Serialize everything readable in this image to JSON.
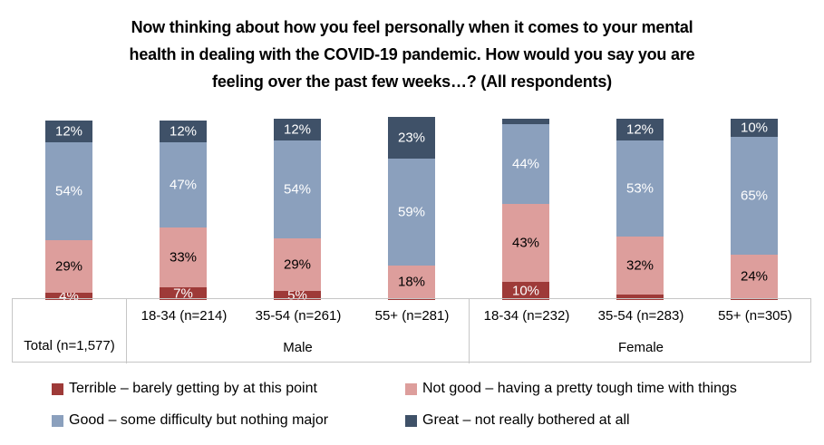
{
  "title": {
    "full": "Now thinking about how you feel personally when it comes to your mental health in dealing with the COVID-19 pandemic. How would you say you are feeling over the past few weeks…? (All respondents)",
    "lines": [
      "Now thinking about how you feel personally when it comes to your mental",
      "health in dealing with the COVID-19 pandemic. How would you say you are",
      "feeling over the past few weeks…? (All respondents)"
    ]
  },
  "chart_data": {
    "type": "bar",
    "stacked": true,
    "unit": "%",
    "ylim": [
      0,
      100
    ],
    "grid": false,
    "legend_position": "bottom",
    "categories": [
      "Total (n=1,577)",
      "18-34 (n=214)",
      "35-54 (n=261)",
      "55+ (n=281)",
      "18-34 (n=232)",
      "35-54 (n=283)",
      "55+ (n=305)"
    ],
    "groups": [
      {
        "label": "Total (n=1,577)",
        "span": 1
      },
      {
        "label": "Male",
        "span": 3
      },
      {
        "label": "Female",
        "span": 3
      }
    ],
    "series": [
      {
        "name": "Terrible – barely getting by at this point",
        "color": "#9e3a38",
        "label_color": "#ffffff",
        "values": [
          4,
          7,
          5,
          1,
          10,
          3,
          1
        ],
        "labels": [
          "4%",
          "7%",
          "5%",
          "",
          "10%",
          "",
          ""
        ]
      },
      {
        "name": "Not good – having a pretty tough time with things",
        "color": "#dd9e9c",
        "label_color": "#000000",
        "values": [
          29,
          33,
          29,
          18,
          43,
          32,
          24
        ],
        "labels": [
          "29%",
          "33%",
          "29%",
          "18%",
          "43%",
          "32%",
          "24%"
        ]
      },
      {
        "name": "Good – some difficulty but nothing major",
        "color": "#8ba0bd",
        "label_color": "#ffffff",
        "values": [
          54,
          47,
          54,
          59,
          44,
          53,
          65
        ],
        "labels": [
          "54%",
          "47%",
          "54%",
          "59%",
          "44%",
          "53%",
          "65%"
        ]
      },
      {
        "name": "Great – not really bothered at all",
        "color": "#3f5168",
        "label_color": "#ffffff",
        "values": [
          12,
          12,
          12,
          23,
          3,
          12,
          10
        ],
        "labels": [
          "12%",
          "12%",
          "12%",
          "23%",
          "",
          "12%",
          "10%"
        ]
      }
    ],
    "axis": {
      "total_label": "Total (n=1,577)",
      "male_label": "Male",
      "female_label": "Female",
      "male_categories": [
        "18-34 (n=214)",
        "35-54 (n=261)",
        "55+ (n=281)"
      ],
      "female_categories": [
        "18-34 (n=232)",
        "35-54 (n=283)",
        "55+ (n=305)"
      ]
    }
  },
  "legend": {
    "items": [
      {
        "label": "Terrible – barely getting by at this point",
        "color": "#9e3a38"
      },
      {
        "label": "Not good – having a pretty tough time with things",
        "color": "#dd9e9c"
      },
      {
        "label": "Good – some difficulty but nothing major",
        "color": "#8ba0bd"
      },
      {
        "label": "Great – not really bothered at all",
        "color": "#3f5168"
      }
    ]
  }
}
